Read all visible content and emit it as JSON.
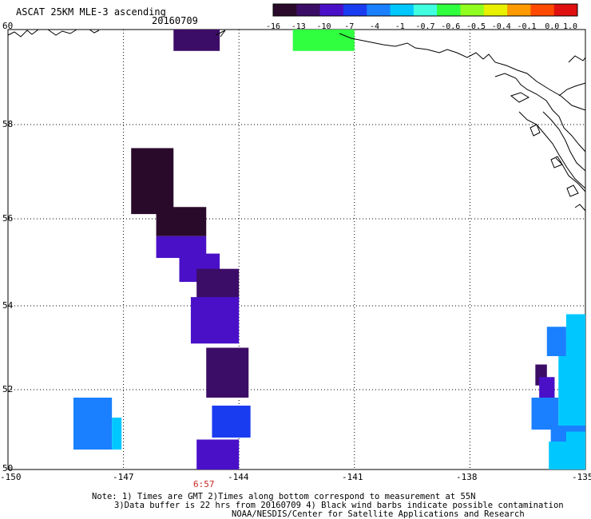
{
  "header": {
    "title": "ASCAT 25KM MLE-3 ascending",
    "date": "20160709"
  },
  "colorbar": {
    "labels": [
      "-16",
      "-13",
      "-10",
      "-7",
      "-4",
      "-1",
      "-0.7",
      "-0.6",
      "-0.5",
      "-0.4",
      "-0.1",
      "0.0",
      "1.0"
    ],
    "colors": [
      "#2a0a2a",
      "#3c0d66",
      "#4a10c8",
      "#1a3cf0",
      "#1a80ff",
      "#00c8ff",
      "#40ffe0",
      "#30ff40",
      "#90ff20",
      "#e8f000",
      "#ff9a00",
      "#ff4a00",
      "#e01010"
    ]
  },
  "axes": {
    "x_ticks": [
      "-150",
      "-147",
      "-144",
      "-141",
      "-138",
      "-135"
    ],
    "y_ticks": [
      "60",
      "58",
      "56",
      "54",
      "52",
      "50"
    ],
    "lon_range": [
      -150,
      -135
    ],
    "lat_range": [
      50,
      60
    ]
  },
  "time_label": "6:57",
  "notes": {
    "line1": "Note: 1) Times are GMT 2)Times along bottom correspond to measurement at 55N",
    "line2": "3)Data buffer is 22 hrs from 20160709 4) Black wind barbs indicate possible contamination",
    "line3": "NOAA/NESDIS/Center for Satellite Applications and Research"
  },
  "swaths": [
    {
      "lon": [
        -145.7,
        -144.5
      ],
      "lat": [
        59.55,
        60.0
      ],
      "color": "#3c0d66"
    },
    {
      "lon": [
        -146.8,
        -145.7
      ],
      "lat": [
        56.1,
        57.5
      ],
      "color": "#2a0a2a"
    },
    {
      "lon": [
        -146.15,
        -144.85
      ],
      "lat": [
        55.6,
        56.25
      ],
      "color": "#2a0a2a"
    },
    {
      "lon": [
        -146.15,
        -144.85
      ],
      "lat": [
        55.1,
        55.6
      ],
      "color": "#4a10c8"
    },
    {
      "lon": [
        -145.55,
        -144.5
      ],
      "lat": [
        54.55,
        55.2
      ],
      "color": "#4a10c8"
    },
    {
      "lon": [
        -145.1,
        -144.0
      ],
      "lat": [
        54.1,
        54.85
      ],
      "color": "#3c0d66"
    },
    {
      "lon": [
        -145.25,
        -144.0
      ],
      "lat": [
        53.1,
        54.2
      ],
      "color": "#4a10c8"
    },
    {
      "lon": [
        -144.85,
        -143.75
      ],
      "lat": [
        51.8,
        53.0
      ],
      "color": "#3c0d66"
    },
    {
      "lon": [
        -144.7,
        -143.7
      ],
      "lat": [
        50.8,
        51.6
      ],
      "color": "#1a3cf0"
    },
    {
      "lon": [
        -145.1,
        -144.0
      ],
      "lat": [
        50.0,
        50.75
      ],
      "color": "#4a10c8"
    },
    {
      "lon": [
        -148.3,
        -147.3
      ],
      "lat": [
        50.5,
        51.8
      ],
      "color": "#1a80ff"
    },
    {
      "lon": [
        -147.3,
        -147.05
      ],
      "lat": [
        50.5,
        51.3
      ],
      "color": "#00c8ff"
    },
    {
      "lon": [
        -142.6,
        -141.0
      ],
      "lat": [
        59.55,
        60.0
      ],
      "color": "#30ff40"
    },
    {
      "lon": [
        -135.5,
        -135.0
      ],
      "lat": [
        52.8,
        53.8
      ],
      "color": "#00c8ff"
    },
    {
      "lon": [
        -136.0,
        -135.5
      ],
      "lat": [
        52.8,
        53.5
      ],
      "color": "#1a80ff"
    },
    {
      "lon": [
        -136.3,
        -136.0
      ],
      "lat": [
        52.1,
        52.6
      ],
      "color": "#3c0d66"
    },
    {
      "lon": [
        -136.2,
        -135.8
      ],
      "lat": [
        51.8,
        52.3
      ],
      "color": "#4a10c8"
    },
    {
      "lon": [
        -136.4,
        -135.7
      ],
      "lat": [
        51.0,
        51.8
      ],
      "color": "#1a80ff"
    },
    {
      "lon": [
        -135.7,
        -135.0
      ],
      "lat": [
        51.0,
        52.8
      ],
      "color": "#00c8ff"
    },
    {
      "lon": [
        -135.9,
        -135.0
      ],
      "lat": [
        50.7,
        51.1
      ],
      "color": "#1a80ff"
    },
    {
      "lon": [
        -135.5,
        -135.0
      ],
      "lat": [
        50.7,
        50.95
      ],
      "color": "#00c8ff"
    },
    {
      "lon": [
        -135.95,
        -135.0
      ],
      "lat": [
        50.0,
        50.7
      ],
      "color": "#00c8ff"
    }
  ]
}
